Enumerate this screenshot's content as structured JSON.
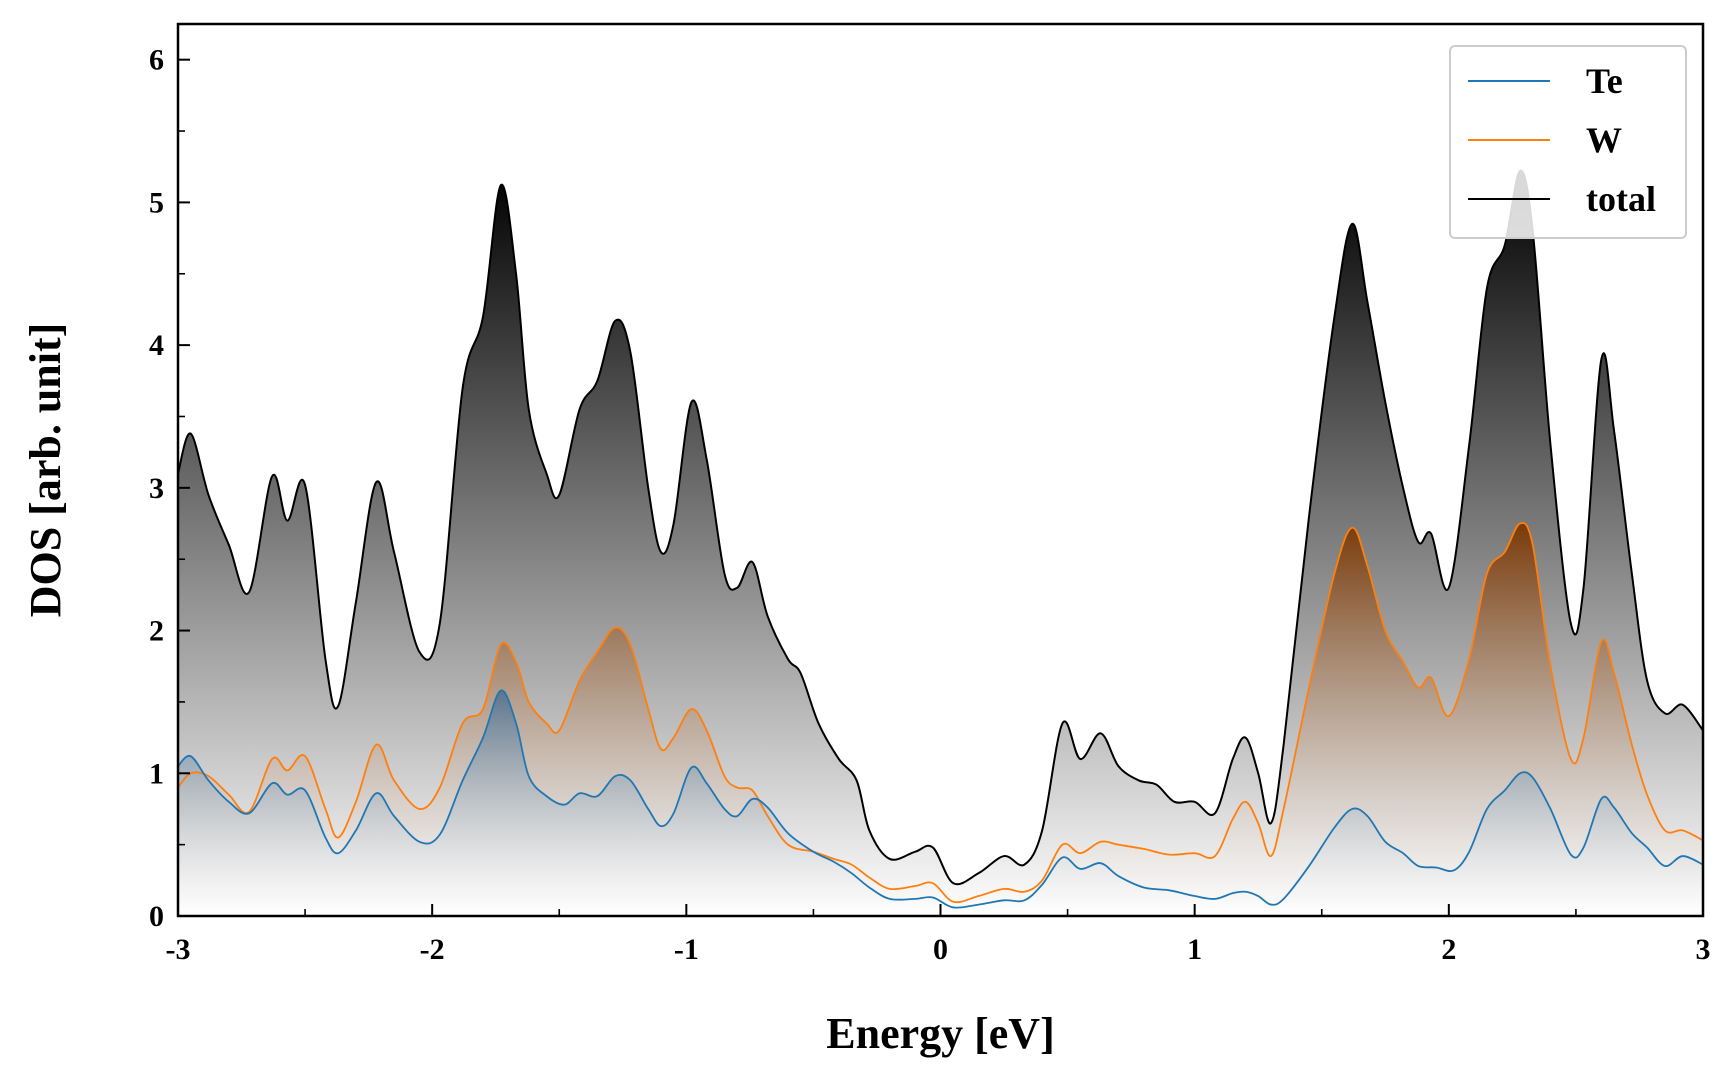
{
  "chart_data": {
    "type": "area",
    "xlabel": "Energy [eV]",
    "ylabel": "DOS [arb. unit]",
    "xlim": [
      -3,
      3
    ],
    "ylim": [
      0,
      6.25
    ],
    "x_ticks": [
      "-3",
      "-2",
      "-1",
      "0",
      "1",
      "2",
      "3"
    ],
    "y_ticks": [
      "0",
      "1",
      "2",
      "3",
      "4",
      "5",
      "6"
    ],
    "legend_position": "top-right",
    "grid": false,
    "series": [
      {
        "name": "Te",
        "color": "#1f77b4",
        "fill": "blue-gray gradient",
        "points": [
          [
            -3.0,
            1.05
          ],
          [
            -2.95,
            1.12
          ],
          [
            -2.88,
            0.95
          ],
          [
            -2.8,
            0.8
          ],
          [
            -2.72,
            0.72
          ],
          [
            -2.63,
            0.93
          ],
          [
            -2.57,
            0.85
          ],
          [
            -2.5,
            0.88
          ],
          [
            -2.42,
            0.55
          ],
          [
            -2.37,
            0.44
          ],
          [
            -2.3,
            0.6
          ],
          [
            -2.22,
            0.86
          ],
          [
            -2.15,
            0.7
          ],
          [
            -2.05,
            0.52
          ],
          [
            -1.97,
            0.57
          ],
          [
            -1.88,
            0.95
          ],
          [
            -1.8,
            1.25
          ],
          [
            -1.73,
            1.58
          ],
          [
            -1.67,
            1.35
          ],
          [
            -1.62,
            0.98
          ],
          [
            -1.55,
            0.84
          ],
          [
            -1.48,
            0.78
          ],
          [
            -1.42,
            0.86
          ],
          [
            -1.35,
            0.84
          ],
          [
            -1.28,
            0.98
          ],
          [
            -1.22,
            0.95
          ],
          [
            -1.15,
            0.75
          ],
          [
            -1.1,
            0.63
          ],
          [
            -1.05,
            0.72
          ],
          [
            -0.98,
            1.04
          ],
          [
            -0.92,
            0.93
          ],
          [
            -0.85,
            0.75
          ],
          [
            -0.8,
            0.7
          ],
          [
            -0.74,
            0.82
          ],
          [
            -0.68,
            0.76
          ],
          [
            -0.6,
            0.58
          ],
          [
            -0.5,
            0.45
          ],
          [
            -0.42,
            0.38
          ],
          [
            -0.35,
            0.3
          ],
          [
            -0.28,
            0.2
          ],
          [
            -0.2,
            0.12
          ],
          [
            -0.1,
            0.12
          ],
          [
            -0.03,
            0.13
          ],
          [
            0.05,
            0.06
          ],
          [
            0.15,
            0.08
          ],
          [
            0.25,
            0.11
          ],
          [
            0.33,
            0.11
          ],
          [
            0.4,
            0.22
          ],
          [
            0.48,
            0.41
          ],
          [
            0.55,
            0.33
          ],
          [
            0.63,
            0.37
          ],
          [
            0.7,
            0.28
          ],
          [
            0.8,
            0.2
          ],
          [
            0.9,
            0.18
          ],
          [
            1.0,
            0.14
          ],
          [
            1.08,
            0.12
          ],
          [
            1.15,
            0.16
          ],
          [
            1.2,
            0.17
          ],
          [
            1.25,
            0.14
          ],
          [
            1.3,
            0.08
          ],
          [
            1.35,
            0.12
          ],
          [
            1.45,
            0.35
          ],
          [
            1.55,
            0.62
          ],
          [
            1.62,
            0.75
          ],
          [
            1.68,
            0.7
          ],
          [
            1.75,
            0.52
          ],
          [
            1.82,
            0.44
          ],
          [
            1.88,
            0.35
          ],
          [
            1.95,
            0.34
          ],
          [
            2.02,
            0.32
          ],
          [
            2.08,
            0.45
          ],
          [
            2.15,
            0.75
          ],
          [
            2.22,
            0.88
          ],
          [
            2.28,
            1.0
          ],
          [
            2.33,
            0.97
          ],
          [
            2.4,
            0.75
          ],
          [
            2.48,
            0.43
          ],
          [
            2.53,
            0.48
          ],
          [
            2.6,
            0.82
          ],
          [
            2.65,
            0.76
          ],
          [
            2.72,
            0.58
          ],
          [
            2.78,
            0.48
          ],
          [
            2.85,
            0.35
          ],
          [
            2.92,
            0.42
          ],
          [
            3.0,
            0.36
          ]
        ]
      },
      {
        "name": "W",
        "color": "#ff7f0e",
        "fill": "orange-brown gradient",
        "points": [
          [
            -3.0,
            0.9
          ],
          [
            -2.95,
            1.0
          ],
          [
            -2.88,
            0.98
          ],
          [
            -2.8,
            0.85
          ],
          [
            -2.72,
            0.73
          ],
          [
            -2.63,
            1.1
          ],
          [
            -2.57,
            1.02
          ],
          [
            -2.5,
            1.12
          ],
          [
            -2.42,
            0.75
          ],
          [
            -2.37,
            0.55
          ],
          [
            -2.3,
            0.8
          ],
          [
            -2.22,
            1.2
          ],
          [
            -2.15,
            0.95
          ],
          [
            -2.05,
            0.75
          ],
          [
            -1.97,
            0.9
          ],
          [
            -1.88,
            1.35
          ],
          [
            -1.8,
            1.45
          ],
          [
            -1.73,
            1.9
          ],
          [
            -1.67,
            1.78
          ],
          [
            -1.62,
            1.5
          ],
          [
            -1.55,
            1.35
          ],
          [
            -1.5,
            1.3
          ],
          [
            -1.42,
            1.65
          ],
          [
            -1.35,
            1.85
          ],
          [
            -1.28,
            2.02
          ],
          [
            -1.22,
            1.9
          ],
          [
            -1.15,
            1.45
          ],
          [
            -1.1,
            1.17
          ],
          [
            -1.05,
            1.25
          ],
          [
            -0.98,
            1.45
          ],
          [
            -0.92,
            1.3
          ],
          [
            -0.85,
            0.98
          ],
          [
            -0.8,
            0.9
          ],
          [
            -0.74,
            0.88
          ],
          [
            -0.68,
            0.7
          ],
          [
            -0.6,
            0.5
          ],
          [
            -0.5,
            0.45
          ],
          [
            -0.42,
            0.4
          ],
          [
            -0.35,
            0.36
          ],
          [
            -0.28,
            0.27
          ],
          [
            -0.2,
            0.19
          ],
          [
            -0.1,
            0.21
          ],
          [
            -0.03,
            0.23
          ],
          [
            0.05,
            0.1
          ],
          [
            0.15,
            0.14
          ],
          [
            0.25,
            0.19
          ],
          [
            0.33,
            0.17
          ],
          [
            0.4,
            0.25
          ],
          [
            0.48,
            0.5
          ],
          [
            0.55,
            0.44
          ],
          [
            0.63,
            0.52
          ],
          [
            0.7,
            0.5
          ],
          [
            0.8,
            0.47
          ],
          [
            0.9,
            0.43
          ],
          [
            1.0,
            0.44
          ],
          [
            1.08,
            0.42
          ],
          [
            1.15,
            0.68
          ],
          [
            1.2,
            0.8
          ],
          [
            1.25,
            0.65
          ],
          [
            1.3,
            0.42
          ],
          [
            1.35,
            0.75
          ],
          [
            1.45,
            1.6
          ],
          [
            1.55,
            2.4
          ],
          [
            1.62,
            2.72
          ],
          [
            1.68,
            2.45
          ],
          [
            1.75,
            2.0
          ],
          [
            1.82,
            1.78
          ],
          [
            1.88,
            1.6
          ],
          [
            1.93,
            1.67
          ],
          [
            2.0,
            1.4
          ],
          [
            2.08,
            1.8
          ],
          [
            2.15,
            2.4
          ],
          [
            2.22,
            2.55
          ],
          [
            2.28,
            2.75
          ],
          [
            2.33,
            2.6
          ],
          [
            2.4,
            1.75
          ],
          [
            2.48,
            1.1
          ],
          [
            2.53,
            1.25
          ],
          [
            2.6,
            1.92
          ],
          [
            2.65,
            1.7
          ],
          [
            2.72,
            1.2
          ],
          [
            2.78,
            0.85
          ],
          [
            2.85,
            0.6
          ],
          [
            2.92,
            0.6
          ],
          [
            3.0,
            0.53
          ]
        ]
      },
      {
        "name": "total",
        "color": "#000000",
        "fill": "gray gradient",
        "points": [
          [
            -3.0,
            3.1
          ],
          [
            -2.95,
            3.38
          ],
          [
            -2.88,
            2.95
          ],
          [
            -2.8,
            2.6
          ],
          [
            -2.72,
            2.27
          ],
          [
            -2.63,
            3.08
          ],
          [
            -2.57,
            2.77
          ],
          [
            -2.5,
            3.02
          ],
          [
            -2.42,
            1.8
          ],
          [
            -2.37,
            1.47
          ],
          [
            -2.3,
            2.2
          ],
          [
            -2.22,
            3.04
          ],
          [
            -2.15,
            2.55
          ],
          [
            -2.05,
            1.85
          ],
          [
            -1.97,
            2.05
          ],
          [
            -1.88,
            3.7
          ],
          [
            -1.8,
            4.2
          ],
          [
            -1.73,
            5.12
          ],
          [
            -1.67,
            4.5
          ],
          [
            -1.62,
            3.55
          ],
          [
            -1.55,
            3.1
          ],
          [
            -1.5,
            2.95
          ],
          [
            -1.42,
            3.55
          ],
          [
            -1.35,
            3.75
          ],
          [
            -1.28,
            4.17
          ],
          [
            -1.22,
            3.95
          ],
          [
            -1.15,
            3.0
          ],
          [
            -1.1,
            2.55
          ],
          [
            -1.05,
            2.75
          ],
          [
            -0.98,
            3.6
          ],
          [
            -0.92,
            3.2
          ],
          [
            -0.85,
            2.4
          ],
          [
            -0.8,
            2.3
          ],
          [
            -0.74,
            2.48
          ],
          [
            -0.68,
            2.1
          ],
          [
            -0.6,
            1.8
          ],
          [
            -0.55,
            1.7
          ],
          [
            -0.48,
            1.35
          ],
          [
            -0.4,
            1.1
          ],
          [
            -0.33,
            0.95
          ],
          [
            -0.28,
            0.6
          ],
          [
            -0.2,
            0.4
          ],
          [
            -0.1,
            0.45
          ],
          [
            -0.03,
            0.48
          ],
          [
            0.05,
            0.23
          ],
          [
            0.15,
            0.3
          ],
          [
            0.25,
            0.42
          ],
          [
            0.33,
            0.36
          ],
          [
            0.4,
            0.6
          ],
          [
            0.48,
            1.35
          ],
          [
            0.55,
            1.1
          ],
          [
            0.63,
            1.28
          ],
          [
            0.7,
            1.05
          ],
          [
            0.78,
            0.95
          ],
          [
            0.85,
            0.92
          ],
          [
            0.92,
            0.8
          ],
          [
            1.0,
            0.8
          ],
          [
            1.08,
            0.72
          ],
          [
            1.15,
            1.1
          ],
          [
            1.2,
            1.25
          ],
          [
            1.25,
            1.0
          ],
          [
            1.3,
            0.65
          ],
          [
            1.35,
            1.2
          ],
          [
            1.45,
            2.8
          ],
          [
            1.55,
            4.2
          ],
          [
            1.62,
            4.85
          ],
          [
            1.68,
            4.3
          ],
          [
            1.75,
            3.6
          ],
          [
            1.82,
            3.0
          ],
          [
            1.88,
            2.62
          ],
          [
            1.93,
            2.68
          ],
          [
            2.0,
            2.3
          ],
          [
            2.08,
            3.3
          ],
          [
            2.15,
            4.4
          ],
          [
            2.22,
            4.7
          ],
          [
            2.28,
            5.22
          ],
          [
            2.33,
            4.8
          ],
          [
            2.4,
            3.3
          ],
          [
            2.48,
            2.05
          ],
          [
            2.53,
            2.3
          ],
          [
            2.6,
            3.9
          ],
          [
            2.65,
            3.4
          ],
          [
            2.72,
            2.4
          ],
          [
            2.78,
            1.65
          ],
          [
            2.85,
            1.42
          ],
          [
            2.92,
            1.48
          ],
          [
            3.0,
            1.3
          ]
        ]
      }
    ]
  }
}
